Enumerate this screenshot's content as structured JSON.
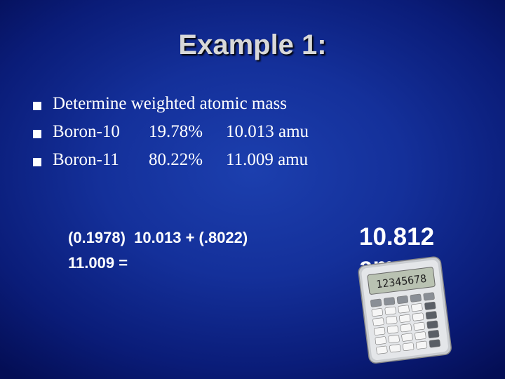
{
  "title": "Example 1:",
  "bullets": [
    {
      "cells": [
        "Determine weighted atomic mass"
      ]
    },
    {
      "cells": [
        "Boron-10",
        "19.78%",
        "10.013 amu"
      ]
    },
    {
      "cells": [
        "Boron-11",
        "80.22%",
        "11.009 amu"
      ]
    }
  ],
  "equation": {
    "lines": [
      "(0.1978)  10.013 + (.8022)",
      "11.009 ="
    ]
  },
  "answer": {
    "lines": [
      "10.812",
      "amu"
    ]
  },
  "calculator": {
    "display": "12345678"
  }
}
